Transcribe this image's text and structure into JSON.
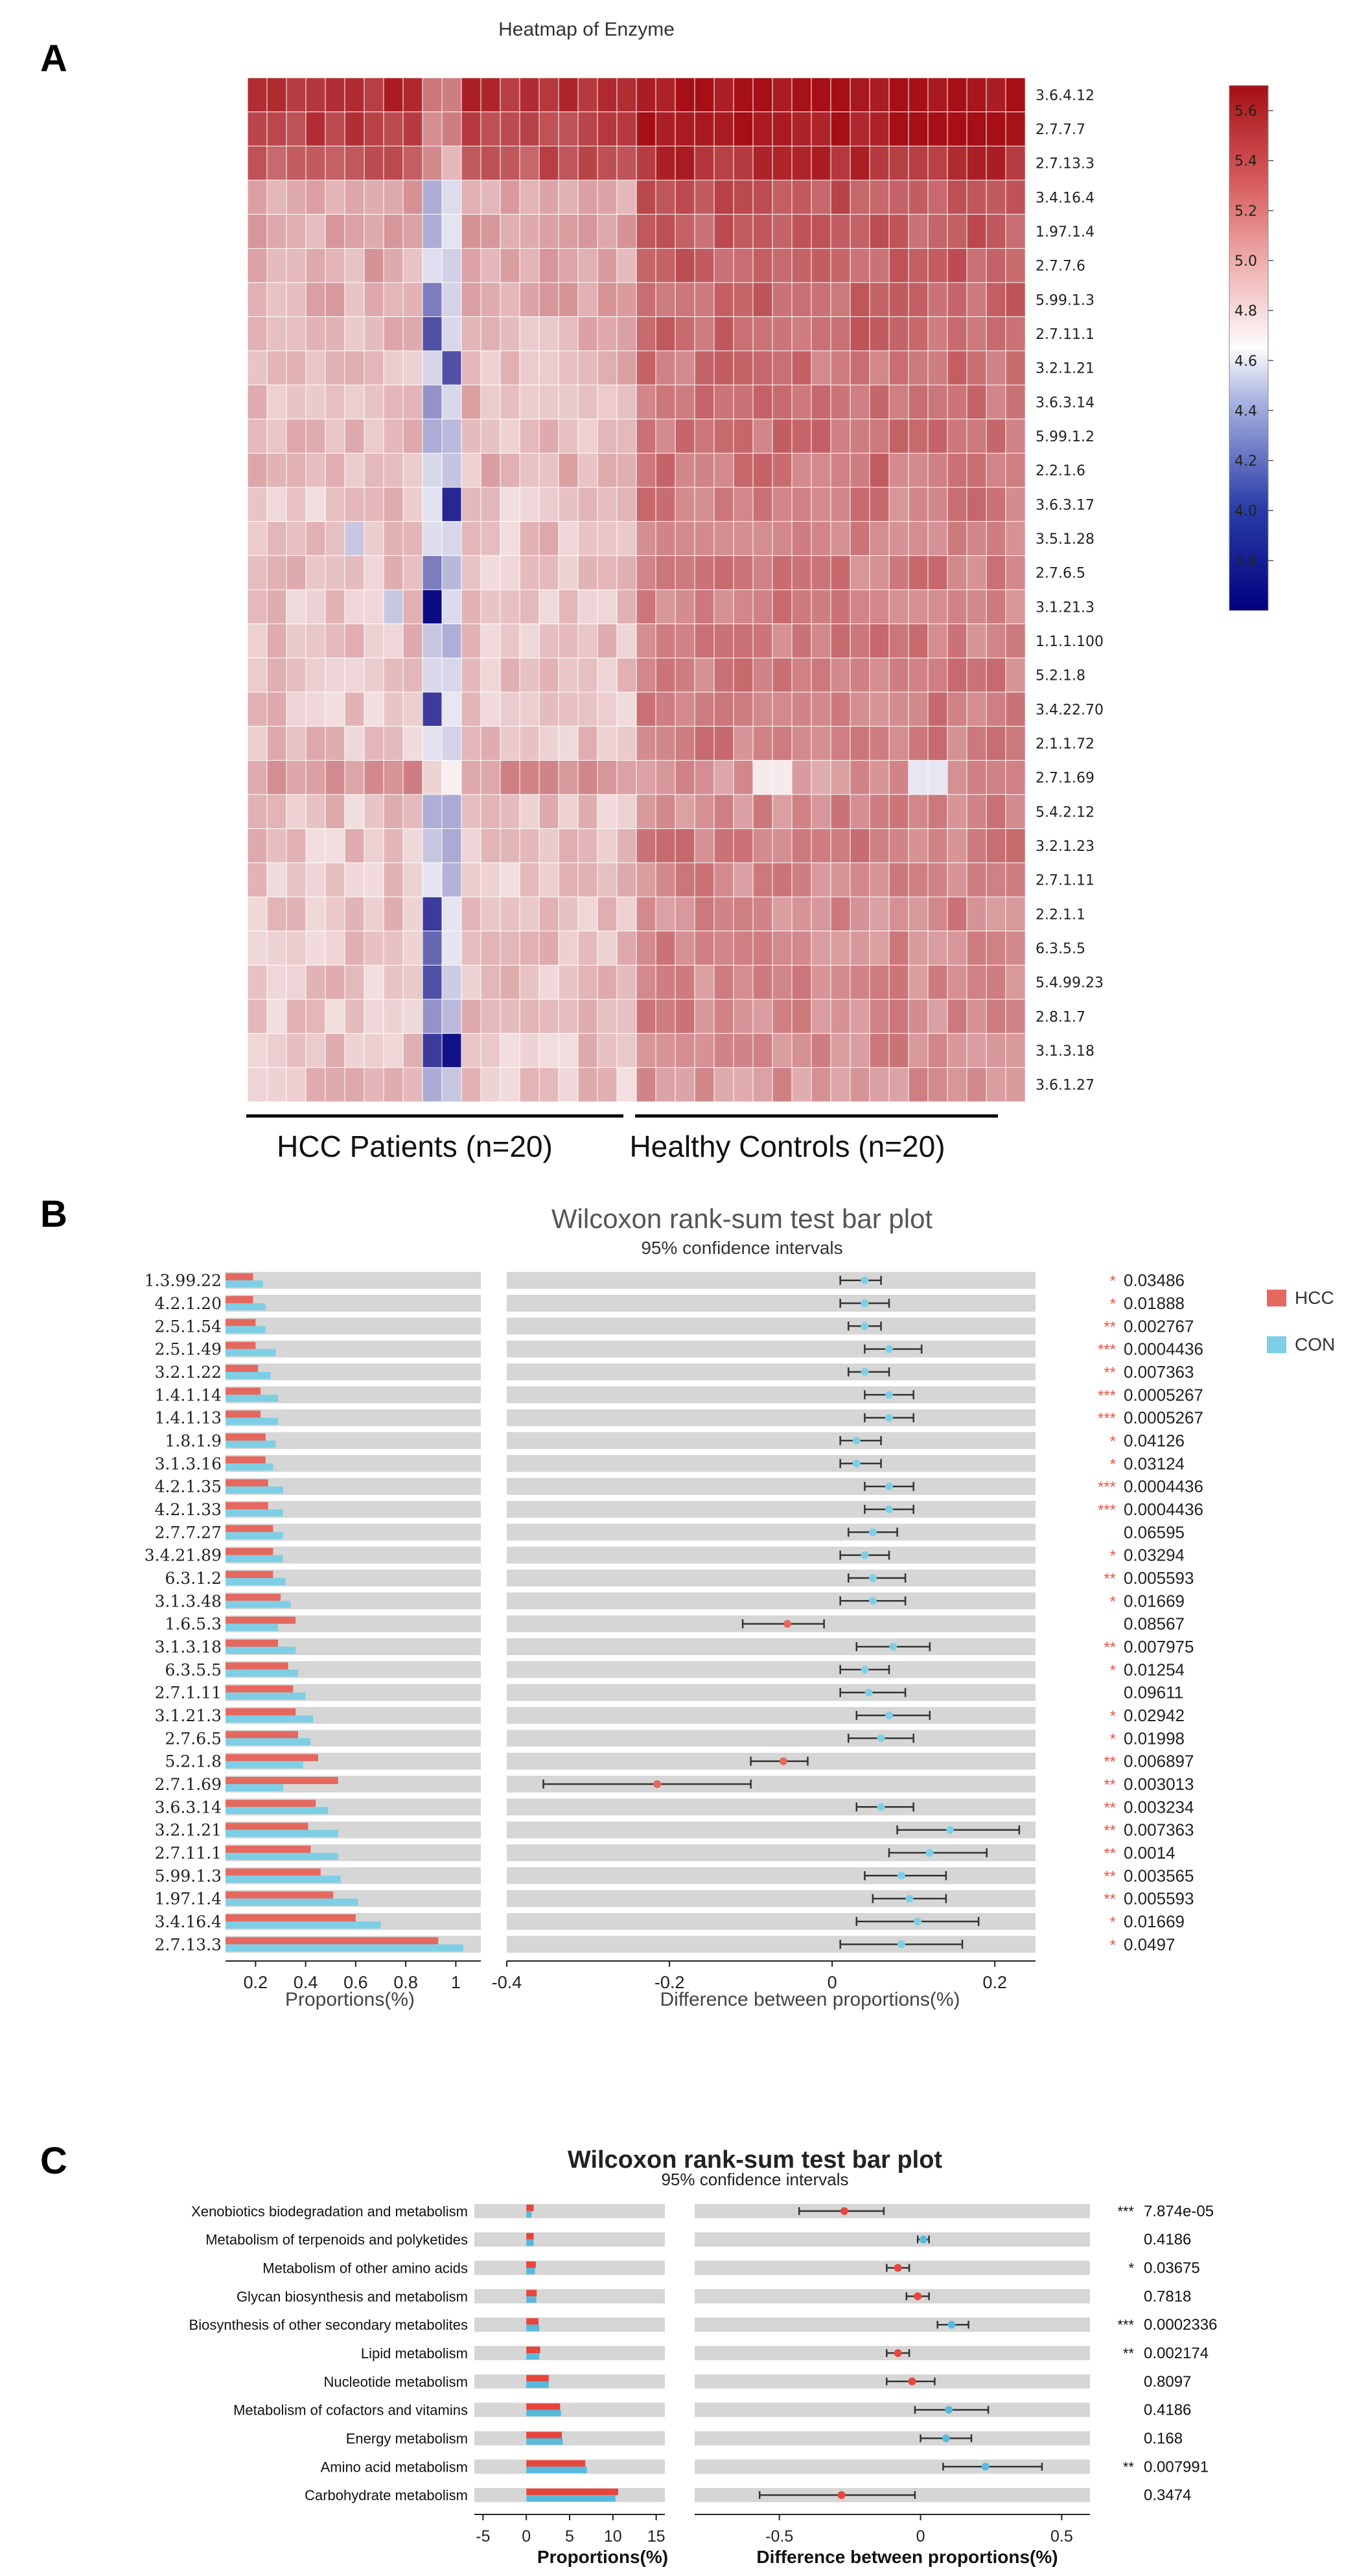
{
  "figure": {
    "panel_labels": [
      "A",
      "B",
      "C"
    ]
  },
  "chart_data": [
    {
      "type": "heatmap",
      "title": "Heatmap of Enzyme",
      "rows": [
        "3.6.4.12",
        "2.7.7.7",
        "2.7.13.3",
        "3.4.16.4",
        "1.97.1.4",
        "2.7.7.6",
        "5.99.1.3",
        "2.7.11.1",
        "3.2.1.21",
        "3.6.3.14",
        "5.99.1.2",
        "2.2.1.6",
        "3.6.3.17",
        "3.5.1.28",
        "2.7.6.5",
        "3.1.21.3",
        "1.1.1.100",
        "5.2.1.8",
        "3.4.22.70",
        "2.1.1.72",
        "2.7.1.69",
        "5.4.2.12",
        "3.2.1.23",
        "2.7.1.11",
        "2.2.1.1",
        "6.3.5.5",
        "5.4.99.23",
        "2.8.1.7",
        "3.1.3.18",
        "3.6.1.27"
      ],
      "groups": [
        {
          "label": "HCC Patients (n=20)",
          "n": 20
        },
        {
          "label": "Healthy Controls (n=20)",
          "n": 20
        }
      ],
      "row_level_hcc": [
        5.55,
        5.45,
        5.35,
        5.0,
        4.95,
        4.95,
        4.95,
        4.9,
        4.9,
        4.9,
        4.9,
        4.9,
        4.85,
        4.85,
        4.85,
        4.85,
        4.85,
        4.85,
        4.85,
        4.85,
        5.05,
        4.85,
        4.85,
        4.85,
        4.85,
        4.85,
        4.85,
        4.85,
        4.85,
        4.85
      ],
      "row_level_con": [
        5.7,
        5.65,
        5.55,
        5.35,
        5.3,
        5.3,
        5.25,
        5.25,
        5.2,
        5.2,
        5.2,
        5.2,
        5.15,
        5.15,
        5.15,
        5.15,
        5.15,
        5.15,
        5.15,
        5.15,
        5.05,
        5.1,
        5.15,
        5.1,
        5.1,
        5.1,
        5.1,
        5.1,
        5.1,
        5.05
      ],
      "low_cells": [
        {
          "row": 15,
          "col": 9,
          "value": 3.65
        },
        {
          "row": 28,
          "col": 10,
          "value": 3.7
        },
        {
          "row": 12,
          "col": 10,
          "value": 3.8
        },
        {
          "row": 24,
          "col": 9,
          "value": 3.9
        },
        {
          "row": 18,
          "col": 9,
          "value": 3.9
        },
        {
          "row": 7,
          "col": 9,
          "value": 4.0
        },
        {
          "row": 8,
          "col": 10,
          "value": 4.0
        },
        {
          "row": 28,
          "col": 9,
          "value": 3.9
        },
        {
          "row": 26,
          "col": 9,
          "value": 4.0
        },
        {
          "row": 6,
          "col": 9,
          "value": 4.2
        },
        {
          "row": 25,
          "col": 9,
          "value": 4.1
        },
        {
          "row": 14,
          "col": 9,
          "value": 4.2
        },
        {
          "row": 3,
          "col": 9,
          "value": 4.4
        },
        {
          "row": 4,
          "col": 9,
          "value": 4.4
        },
        {
          "row": 9,
          "col": 9,
          "value": 4.3
        },
        {
          "row": 10,
          "col": 9,
          "value": 4.4
        },
        {
          "row": 27,
          "col": 9,
          "value": 4.3
        },
        {
          "row": 22,
          "col": 9,
          "value": 4.5
        },
        {
          "row": 13,
          "col": 5,
          "value": 4.5
        },
        {
          "row": 15,
          "col": 7,
          "value": 4.5
        },
        {
          "row": 16,
          "col": 9,
          "value": 4.5
        },
        {
          "row": 20,
          "col": 34,
          "value": 4.6
        },
        {
          "row": 20,
          "col": 35,
          "value": 4.6
        },
        {
          "row": 20,
          "col": 26,
          "value": 4.7
        },
        {
          "row": 20,
          "col": 27,
          "value": 4.7
        }
      ],
      "colorbar": {
        "ticks": [
          5.6,
          5.4,
          5.2,
          5.0,
          4.8,
          4.6,
          4.4,
          4.2,
          4.0,
          3.8
        ],
        "range": [
          3.6,
          5.7
        ],
        "low_color": "#00007f",
        "mid_color": "#fdfcfd",
        "high_color": "#a50f15"
      }
    },
    {
      "type": "bar",
      "title": "Wilcoxon rank-sum test bar plot",
      "subtitle": "95% confidence intervals",
      "categories": [
        "1.3.99.22",
        "4.2.1.20",
        "2.5.1.54",
        "2.5.1.49",
        "3.2.1.22",
        "1.4.1.14",
        "1.4.1.13",
        "1.8.1.9",
        "3.1.3.16",
        "4.2.1.35",
        "4.2.1.33",
        "2.7.7.27",
        "3.4.21.89",
        "6.3.1.2",
        "3.1.3.48",
        "1.6.5.3",
        "3.1.3.18",
        "6.3.5.5",
        "2.7.1.11",
        "3.1.21.3",
        "2.7.6.5",
        "5.2.1.8",
        "2.7.1.69",
        "3.6.3.14",
        "3.2.1.21",
        "2.7.11.1",
        "5.99.1.3",
        "1.97.1.4",
        "3.4.16.4",
        "2.7.13.3"
      ],
      "series": [
        {
          "name": "HCC",
          "color": "#e5685e",
          "values": [
            0.19,
            0.19,
            0.2,
            0.2,
            0.21,
            0.22,
            0.22,
            0.24,
            0.24,
            0.25,
            0.25,
            0.27,
            0.27,
            0.27,
            0.3,
            0.36,
            0.29,
            0.33,
            0.35,
            0.36,
            0.37,
            0.45,
            0.53,
            0.44,
            0.41,
            0.42,
            0.46,
            0.51,
            0.6,
            0.93
          ]
        },
        {
          "name": "CON",
          "color": "#7ecfe5",
          "values": [
            0.23,
            0.24,
            0.24,
            0.28,
            0.26,
            0.29,
            0.29,
            0.28,
            0.27,
            0.31,
            0.31,
            0.31,
            0.31,
            0.32,
            0.34,
            0.29,
            0.36,
            0.37,
            0.4,
            0.43,
            0.42,
            0.39,
            0.31,
            0.49,
            0.53,
            0.53,
            0.54,
            0.61,
            0.7,
            1.03
          ]
        }
      ],
      "xlabel": "Proportions(%)",
      "xlim": [
        0.08,
        1.1
      ],
      "xticks": [
        0.2,
        0.4,
        0.6,
        0.8,
        1
      ],
      "diff": {
        "xlabel": "Difference between proportions(%)",
        "xlim": [
          -0.4,
          0.25
        ],
        "xticks": [
          -0.4,
          -0.2,
          0,
          0.2
        ],
        "estimates": [
          0.04,
          0.04,
          0.04,
          0.07,
          0.04,
          0.07,
          0.07,
          0.03,
          0.03,
          0.07,
          0.07,
          0.05,
          0.04,
          0.05,
          0.05,
          -0.055,
          0.075,
          0.04,
          0.045,
          0.07,
          0.06,
          -0.06,
          -0.215,
          0.06,
          0.145,
          0.12,
          0.085,
          0.095,
          0.105,
          0.085
        ],
        "ci_low": [
          0.01,
          0.01,
          0.02,
          0.04,
          0.02,
          0.04,
          0.04,
          0.01,
          0.01,
          0.04,
          0.04,
          0.02,
          0.01,
          0.02,
          0.01,
          -0.11,
          0.03,
          0.01,
          0.01,
          0.03,
          0.02,
          -0.1,
          -0.355,
          0.03,
          0.08,
          0.07,
          0.04,
          0.05,
          0.03,
          0.01
        ],
        "ci_high": [
          0.06,
          0.07,
          0.06,
          0.11,
          0.07,
          0.1,
          0.1,
          0.06,
          0.06,
          0.1,
          0.1,
          0.08,
          0.07,
          0.09,
          0.09,
          -0.01,
          0.12,
          0.07,
          0.09,
          0.12,
          0.1,
          -0.03,
          -0.1,
          0.1,
          0.23,
          0.19,
          0.14,
          0.14,
          0.18,
          0.16
        ],
        "marker_series": [
          "CON",
          "CON",
          "CON",
          "CON",
          "CON",
          "CON",
          "CON",
          "CON",
          "CON",
          "CON",
          "CON",
          "CON",
          "CON",
          "CON",
          "CON",
          "HCC",
          "CON",
          "CON",
          "CON",
          "CON",
          "CON",
          "HCC",
          "HCC",
          "CON",
          "CON",
          "CON",
          "CON",
          "CON",
          "CON",
          "CON"
        ]
      },
      "stars": [
        "*",
        "*",
        "**",
        "***",
        "**",
        "***",
        "***",
        "*",
        "*",
        "***",
        "***",
        "",
        "*",
        "**",
        "*",
        "",
        "**",
        "*",
        "",
        "*",
        "*",
        "**",
        "**",
        "**",
        "**",
        "**",
        "**",
        "**",
        "*",
        "*"
      ],
      "p_values": [
        "0.03486",
        "0.01888",
        "0.002767",
        "0.0004436",
        "0.007363",
        "0.0005267",
        "0.0005267",
        "0.04126",
        "0.03124",
        "0.0004436",
        "0.0004436",
        "0.06595",
        "0.03294",
        "0.005593",
        "0.01669",
        "0.08567",
        "0.007975",
        "0.01254",
        "0.09611",
        "0.02942",
        "0.01998",
        "0.006897",
        "0.003013",
        "0.003234",
        "0.007363",
        "0.0014",
        "0.003565",
        "0.005593",
        "0.01669",
        "0.0497"
      ],
      "legend": [
        "HCC",
        "CON"
      ],
      "legend_position": "top-right",
      "grid": false
    },
    {
      "type": "bar",
      "title": "Wilcoxon rank-sum test bar plot",
      "subtitle": "95% confidence intervals",
      "categories": [
        "Xenobiotics biodegradation and metabolism",
        "Metabolism of terpenoids and polyketides",
        "Metabolism of other amino acids",
        "Glycan biosynthesis and metabolism",
        "Biosynthesis of other secondary metabolites",
        "Lipid metabolism",
        "Nucleotide metabolism",
        "Metabolism of cofactors and vitamins",
        "Energy metabolism",
        "Amino acid metabolism",
        "Carbohydrate metabolism"
      ],
      "series": [
        {
          "name": "HCC",
          "color": "#e8453c",
          "values": [
            0.85,
            0.85,
            1.1,
            1.2,
            1.4,
            1.6,
            2.6,
            3.9,
            4.1,
            6.8,
            10.6
          ]
        },
        {
          "name": "CON",
          "color": "#58b9dc",
          "values": [
            0.6,
            0.85,
            1.0,
            1.15,
            1.5,
            1.5,
            2.6,
            4.0,
            4.2,
            7.0,
            10.3
          ]
        }
      ],
      "xlabel": "Proportions(%)",
      "xlim": [
        -6,
        16
      ],
      "xticks": [
        -5,
        0,
        5,
        10,
        15
      ],
      "diff": {
        "xlabel": "Difference between proportions(%)",
        "xlim": [
          -0.8,
          0.6
        ],
        "xticks": [
          -0.5,
          0,
          0.5
        ],
        "estimates": [
          -0.27,
          0.01,
          -0.08,
          -0.01,
          0.11,
          -0.08,
          -0.03,
          0.1,
          0.09,
          0.23,
          -0.28
        ],
        "ci_low": [
          -0.43,
          -0.01,
          -0.12,
          -0.05,
          0.06,
          -0.12,
          -0.12,
          -0.02,
          0.0,
          0.08,
          -0.57
        ],
        "ci_high": [
          -0.13,
          0.03,
          -0.04,
          0.03,
          0.17,
          -0.04,
          0.05,
          0.24,
          0.18,
          0.43,
          -0.02
        ],
        "marker_series": [
          "HCC",
          "CON",
          "HCC",
          "HCC",
          "CON",
          "HCC",
          "HCC",
          "CON",
          "CON",
          "CON",
          "HCC"
        ]
      },
      "stars": [
        "***",
        "",
        "*",
        "",
        "***",
        "**",
        "",
        "",
        "",
        "**",
        ""
      ],
      "p_values": [
        "7.874e-05",
        "0.4186",
        "0.03675",
        "0.7818",
        "0.0002336",
        "0.002174",
        "0.8097",
        "0.4186",
        "0.168",
        "0.007991",
        "0.3474"
      ],
      "grid": false
    }
  ]
}
